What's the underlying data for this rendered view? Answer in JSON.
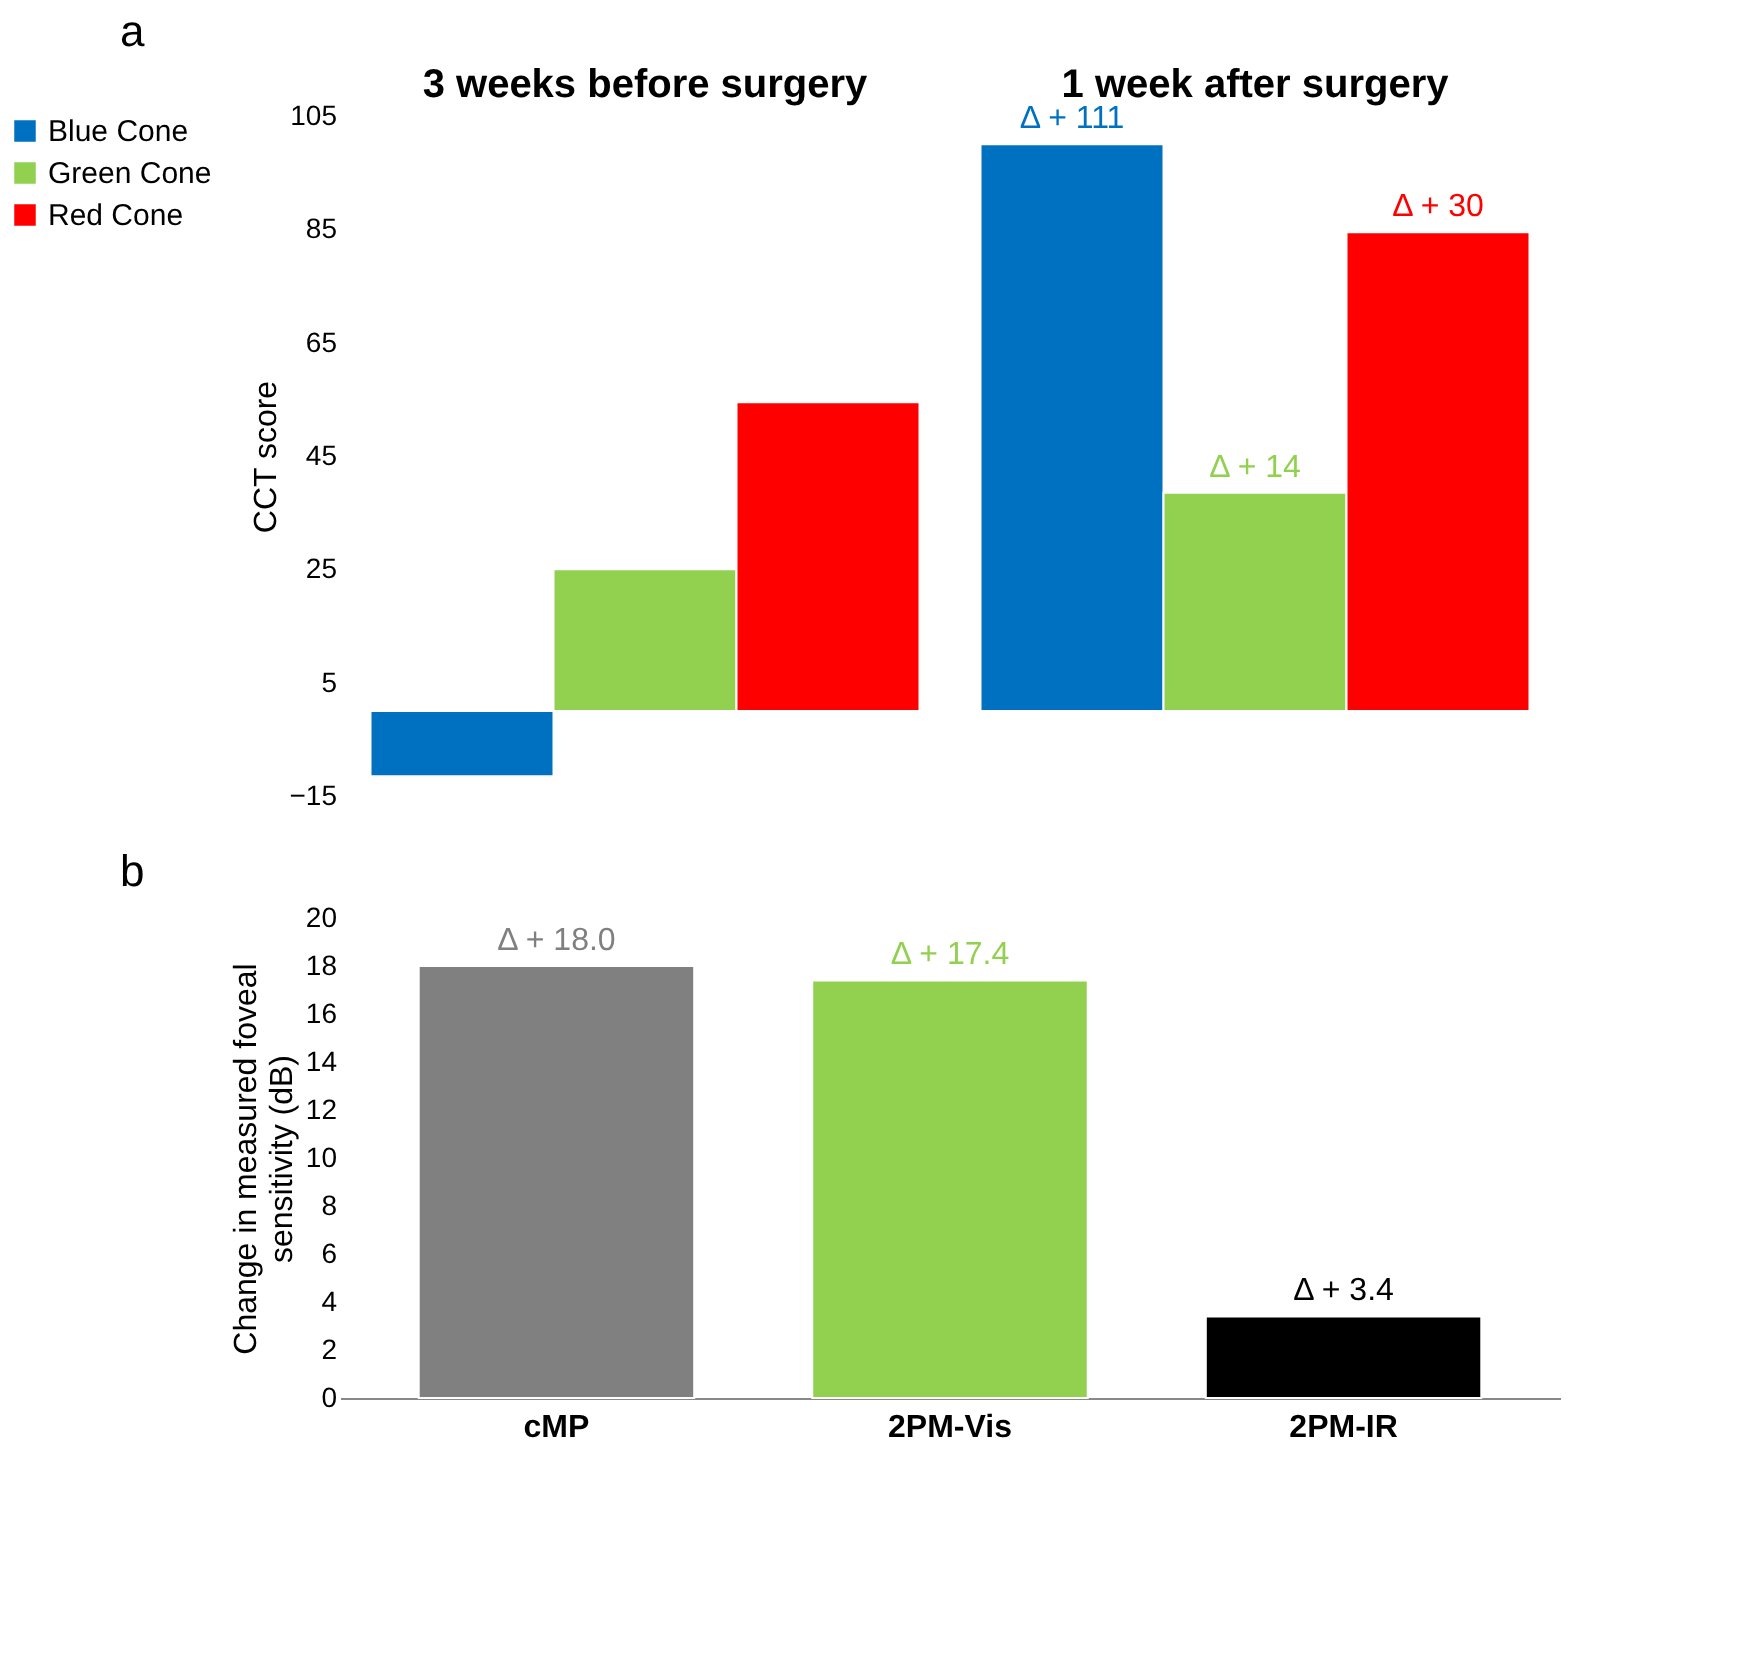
{
  "chart_data": [
    {
      "type": "bar",
      "title": "a",
      "ylabel": "CCT score",
      "categories": [
        "3 weeks before surgery",
        "1 week after surgery"
      ],
      "ylim": [
        -15,
        105
      ],
      "yticks": [
        -15,
        5,
        25,
        45,
        65,
        85,
        105
      ],
      "legend": "left",
      "grid": false,
      "series": [
        {
          "name": "Blue Cone",
          "color": "#0070c0",
          "values": [
            -11.5,
            100
          ]
        },
        {
          "name": "Green Cone",
          "color": "#92d050",
          "values": [
            25,
            38.5
          ]
        },
        {
          "name": "Red Cone",
          "color": "#ff0000",
          "values": [
            54.5,
            84.5
          ]
        }
      ],
      "annotations": [
        "Δ + 111",
        "Δ + 14",
        "Δ + 30"
      ]
    },
    {
      "type": "bar",
      "title": "b",
      "ylabel": "Change in measured foveal sensitivity (dB)",
      "categories": [
        "cMP",
        "2PM-Vis",
        "2PM-IR"
      ],
      "values": [
        18.0,
        17.4,
        3.4
      ],
      "colors": [
        "#808080",
        "#92d050",
        "#000000"
      ],
      "value_labels": [
        "Δ +  18.0",
        "Δ +  17.4",
        "Δ +  3.4"
      ],
      "ylim": [
        0,
        20
      ],
      "yticks": [
        0,
        2,
        4,
        6,
        8,
        10,
        12,
        14,
        16,
        18,
        20
      ],
      "grid": false
    }
  ]
}
